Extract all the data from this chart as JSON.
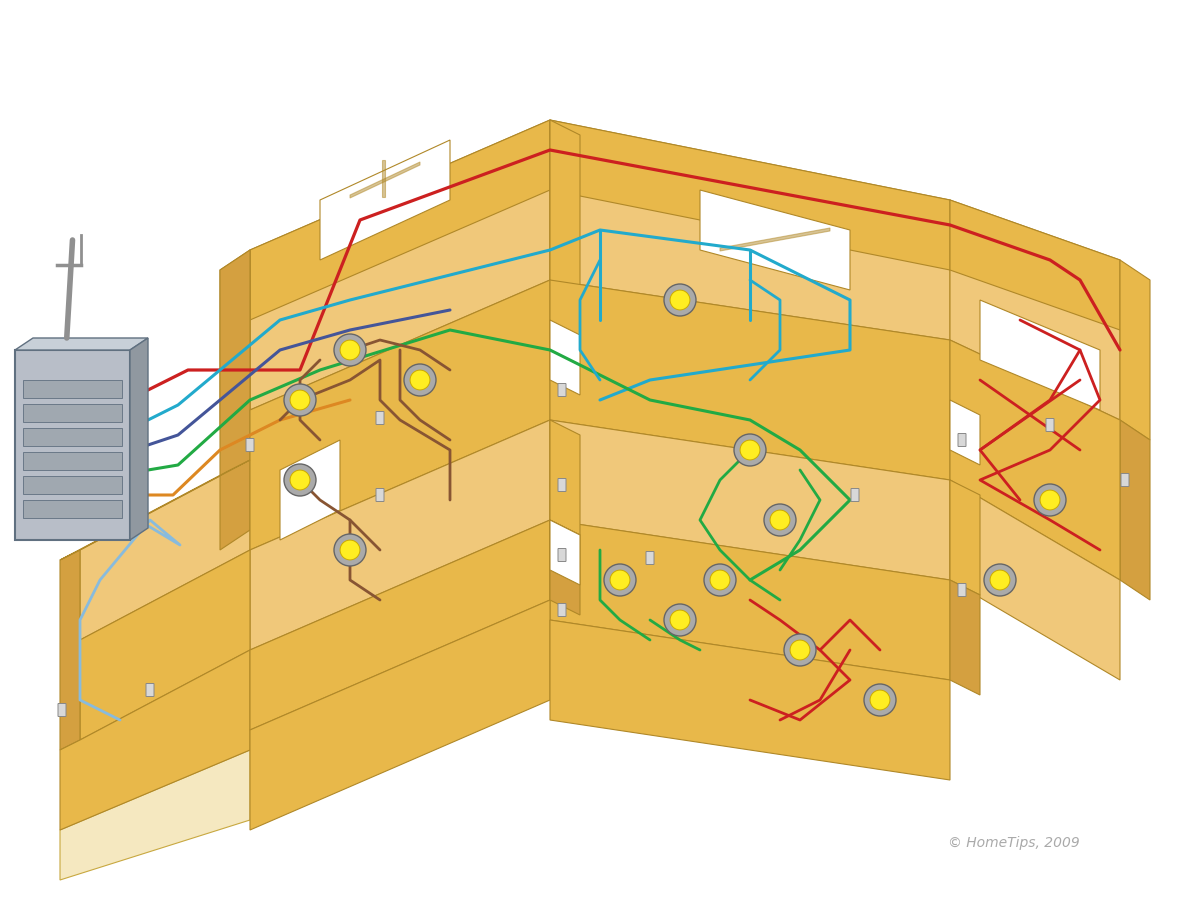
{
  "background_color": "#ffffff",
  "wall_top": "#f0c87a",
  "wall_front": "#e8b84a",
  "wall_dark": "#d4a040",
  "wall_edge": "#b08828",
  "floor_color": "#faebc8",
  "panel_fill": "#b8bec8",
  "panel_side": "#9098a0",
  "panel_top": "#c8d0d8",
  "panel_edge": "#607080",
  "copyright": "© HomeTips, 2009",
  "wire_colors": {
    "red": "#cc2020",
    "blue": "#3388cc",
    "green": "#22aa44",
    "orange": "#dd8822",
    "brown": "#885533",
    "purple": "#445599",
    "teal": "#22aacc",
    "light_blue": "#88bbdd"
  },
  "light_outer": "#aaaaaa",
  "light_inner": "#ffee22",
  "switch_fill": "#d8d8d8",
  "switch_edge": "#888888"
}
